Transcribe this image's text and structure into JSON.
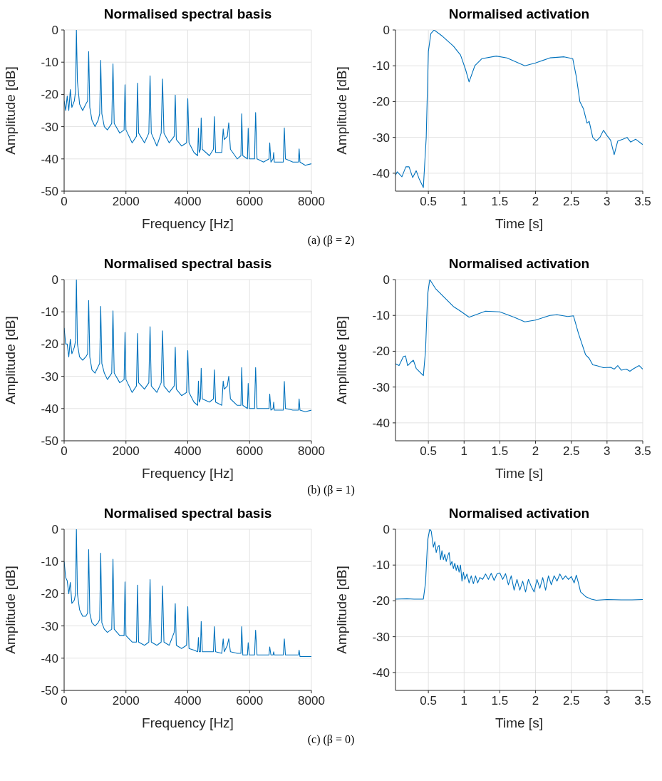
{
  "chart_data": [
    {
      "type": "line",
      "title": "Normalised spectral basis",
      "xlabel": "Frequency [Hz]",
      "ylabel": "Amplitude [dB]",
      "annotations": [
        "(a) (β = 2)"
      ],
      "xlim": [
        0,
        8000
      ],
      "xticks": [
        0,
        2000,
        4000,
        6000,
        8000
      ],
      "ylim": [
        -50,
        0
      ],
      "yticks": [
        -50,
        -40,
        -30,
        -20,
        -10,
        0
      ],
      "grid": true,
      "x": [
        0,
        50,
        100,
        150,
        200,
        250,
        330,
        370,
        397,
        430,
        500,
        600,
        700,
        760,
        794,
        830,
        900,
        1000,
        1100,
        1150,
        1183,
        1220,
        1300,
        1400,
        1540,
        1580,
        1620,
        1800,
        1940,
        1970,
        2000,
        2200,
        2340,
        2375,
        2410,
        2600,
        2740,
        2780,
        2820,
        3000,
        3140,
        3183,
        3230,
        3400,
        3560,
        3595,
        3630,
        3800,
        3960,
        4000,
        4040,
        4200,
        4320,
        4345,
        4370,
        4410,
        4434,
        4470,
        4700,
        4830,
        4861,
        4900,
        5100,
        5146,
        5180,
        5280,
        5326,
        5380,
        5600,
        5720,
        5745,
        5780,
        5930,
        5955,
        5990,
        6160,
        6195,
        6240,
        6450,
        6630,
        6652,
        6690,
        6760,
        6780,
        6800,
        7090,
        7124,
        7160,
        7400,
        7580,
        7603,
        7630,
        7800,
        8000
      ],
      "series": [
        {
          "color": "#0072bd",
          "values": [
            -22,
            -25,
            -20.5,
            -25,
            -18.5,
            -24,
            -22,
            -19,
            0,
            -16,
            -23,
            -25,
            -23,
            -22,
            -6.7,
            -24,
            -28,
            -30,
            -28,
            -26,
            -9.4,
            -26,
            -30,
            -31,
            -29,
            -10.5,
            -29,
            -32,
            -31,
            -17,
            -31,
            -35,
            -33,
            -16.5,
            -32,
            -35,
            -32,
            -14.2,
            -32,
            -36,
            -32,
            -15.2,
            -32,
            -35,
            -33,
            -20.2,
            -34,
            -36,
            -35,
            -21.3,
            -35,
            -38,
            -39,
            -30.5,
            -38,
            -37,
            -27.3,
            -37,
            -39,
            -37,
            -26.9,
            -38,
            -38,
            -30.7,
            -34,
            -33,
            -28.8,
            -37,
            -40,
            -39,
            -26,
            -39,
            -40,
            -30.5,
            -40,
            -40,
            -25.6,
            -40,
            -41,
            -40,
            -35,
            -41,
            -40,
            -38,
            -41,
            -41,
            -30.4,
            -40,
            -41,
            -41,
            -36.9,
            -41,
            -42,
            -41.5
          ]
        }
      ]
    },
    {
      "type": "line",
      "title": "Normalised activation",
      "xlabel": "Time [s]",
      "ylabel": "Amplitude [dB]",
      "xlim": [
        0.04,
        3.5
      ],
      "xticks": [
        0.5,
        1,
        1.5,
        2,
        2.5,
        3,
        3.5
      ],
      "ylim": [
        -45,
        0
      ],
      "yticks": [
        -40,
        -30,
        -20,
        -10,
        0
      ],
      "grid": true,
      "x": [
        0.04,
        0.065,
        0.13,
        0.185,
        0.23,
        0.28,
        0.33,
        0.37,
        0.43,
        0.47,
        0.5,
        0.535,
        0.58,
        0.7,
        0.85,
        0.95,
        1.02,
        1.07,
        1.15,
        1.25,
        1.45,
        1.6,
        1.85,
        2.0,
        2.2,
        2.4,
        2.52,
        2.57,
        2.62,
        2.67,
        2.72,
        2.75,
        2.8,
        2.85,
        2.9,
        2.95,
        3.0,
        3.05,
        3.1,
        3.15,
        3.22,
        3.28,
        3.33,
        3.4,
        3.5
      ],
      "series": [
        {
          "color": "#0072bd",
          "values": [
            -40.5,
            -39.6,
            -41,
            -38.2,
            -38.2,
            -41.2,
            -39.3,
            -41.5,
            -44,
            -30,
            -6,
            -1,
            0,
            -1.8,
            -4.5,
            -7,
            -11,
            -14.5,
            -10,
            -8,
            -7.3,
            -7.8,
            -10,
            -9.2,
            -7.8,
            -7.5,
            -8,
            -13,
            -20,
            -22,
            -26,
            -25.5,
            -30,
            -31,
            -30,
            -28,
            -29.5,
            -30.8,
            -34.8,
            -31,
            -30.5,
            -30,
            -31.3,
            -30.5,
            -32
          ]
        }
      ]
    },
    {
      "type": "line",
      "title": "Normalised spectral basis",
      "xlabel": "Frequency [Hz]",
      "ylabel": "Amplitude [dB]",
      "annotations": [
        "(b) (β = 1)"
      ],
      "xlim": [
        0,
        8000
      ],
      "xticks": [
        0,
        2000,
        4000,
        6000,
        8000
      ],
      "ylim": [
        -50,
        0
      ],
      "yticks": [
        -50,
        -40,
        -30,
        -20,
        -10,
        0
      ],
      "grid": true,
      "x": [
        0,
        50,
        100,
        150,
        200,
        250,
        330,
        370,
        397,
        430,
        500,
        600,
        700,
        760,
        794,
        830,
        900,
        1000,
        1100,
        1150,
        1183,
        1220,
        1300,
        1400,
        1540,
        1580,
        1620,
        1800,
        1940,
        1970,
        2000,
        2200,
        2340,
        2375,
        2410,
        2600,
        2740,
        2780,
        2820,
        3000,
        3140,
        3183,
        3230,
        3400,
        3560,
        3595,
        3630,
        3800,
        3960,
        4000,
        4040,
        4200,
        4320,
        4345,
        4370,
        4410,
        4434,
        4470,
        4700,
        4830,
        4861,
        4900,
        5100,
        5146,
        5180,
        5280,
        5326,
        5380,
        5600,
        5720,
        5745,
        5780,
        5930,
        5955,
        5990,
        6160,
        6195,
        6240,
        6450,
        6630,
        6652,
        6690,
        6760,
        6780,
        6800,
        7090,
        7124,
        7160,
        7400,
        7580,
        7603,
        7630,
        7800,
        8000
      ],
      "series": [
        {
          "color": "#0072bd",
          "values": [
            -15,
            -20,
            -20,
            -24,
            -18.5,
            -23,
            -21,
            -19,
            0,
            -20,
            -24,
            -25,
            -24,
            -23,
            -6.5,
            -24,
            -28,
            -29,
            -27,
            -26,
            -8.3,
            -26,
            -29,
            -31,
            -29,
            -9.7,
            -29,
            -32,
            -31,
            -16.4,
            -31,
            -35,
            -33,
            -16.7,
            -32,
            -34,
            -32,
            -14.6,
            -33,
            -35,
            -32,
            -15.9,
            -33,
            -35,
            -33,
            -21,
            -34,
            -36,
            -35,
            -22,
            -35,
            -38,
            -39,
            -31.5,
            -38,
            -37,
            -27.5,
            -37,
            -38,
            -37,
            -28,
            -38,
            -39,
            -31.5,
            -34,
            -33,
            -30,
            -37,
            -39,
            -39,
            -27.3,
            -39,
            -40,
            -32.2,
            -40,
            -40,
            -27.3,
            -40,
            -40,
            -40,
            -35.5,
            -40.5,
            -40,
            -38,
            -40.5,
            -40.5,
            -31.6,
            -40,
            -40.5,
            -40.5,
            -37,
            -40.5,
            -41,
            -40.5
          ]
        }
      ]
    },
    {
      "type": "line",
      "title": "Normalised activation",
      "xlabel": "Time [s]",
      "ylabel": "Amplitude [dB]",
      "xlim": [
        0.04,
        3.5
      ],
      "xticks": [
        0.5,
        1,
        1.5,
        2,
        2.5,
        3,
        3.5
      ],
      "ylim": [
        -45,
        0
      ],
      "yticks": [
        -40,
        -30,
        -20,
        -10,
        0
      ],
      "grid": true,
      "x": [
        0.04,
        0.09,
        0.15,
        0.18,
        0.21,
        0.25,
        0.29,
        0.33,
        0.43,
        0.46,
        0.49,
        0.52,
        0.6,
        0.75,
        0.85,
        0.95,
        1.07,
        1.3,
        1.5,
        1.7,
        1.85,
        2.0,
        2.2,
        2.3,
        2.45,
        2.53,
        2.6,
        2.7,
        2.75,
        2.8,
        2.85,
        2.95,
        3.05,
        3.1,
        3.15,
        3.2,
        3.27,
        3.32,
        3.37,
        3.45,
        3.5
      ],
      "series": [
        {
          "color": "#0072bd",
          "values": [
            -23.5,
            -24,
            -21.5,
            -21.3,
            -24,
            -23.2,
            -22.5,
            -24.8,
            -26.8,
            -20,
            -4,
            0,
            -2.5,
            -5.5,
            -7.5,
            -8.8,
            -10.5,
            -8.8,
            -9,
            -10.5,
            -11.8,
            -11.3,
            -10,
            -9.8,
            -10.3,
            -10.1,
            -15,
            -21,
            -22,
            -23.8,
            -24,
            -24.6,
            -24.5,
            -25,
            -24,
            -25.3,
            -25,
            -25.6,
            -24.9,
            -24,
            -25
          ]
        }
      ]
    },
    {
      "type": "line",
      "title": "Normalised spectral basis",
      "xlabel": "Frequency [Hz]",
      "ylabel": "Amplitude [dB]",
      "annotations": [
        "(c) (β = 0)"
      ],
      "xlim": [
        0,
        8000
      ],
      "xticks": [
        0,
        2000,
        4000,
        6000,
        8000
      ],
      "ylim": [
        -50,
        0
      ],
      "yticks": [
        -50,
        -40,
        -30,
        -20,
        -10,
        0
      ],
      "grid": true,
      "x": [
        0,
        50,
        100,
        150,
        200,
        250,
        330,
        370,
        397,
        430,
        500,
        600,
        700,
        760,
        794,
        830,
        900,
        1000,
        1100,
        1150,
        1183,
        1220,
        1300,
        1400,
        1540,
        1580,
        1620,
        1800,
        1940,
        1970,
        2000,
        2200,
        2340,
        2375,
        2410,
        2600,
        2740,
        2780,
        2820,
        3000,
        3140,
        3183,
        3230,
        3400,
        3560,
        3595,
        3630,
        3800,
        3960,
        4000,
        4040,
        4200,
        4320,
        4345,
        4370,
        4410,
        4434,
        4470,
        4700,
        4830,
        4861,
        4900,
        5100,
        5146,
        5180,
        5280,
        5326,
        5380,
        5600,
        5720,
        5745,
        5780,
        5930,
        5955,
        5990,
        6160,
        6195,
        6240,
        6450,
        6630,
        6652,
        6690,
        6760,
        6780,
        6800,
        7090,
        7124,
        7160,
        7400,
        7580,
        7603,
        7630,
        7800,
        8000
      ],
      "series": [
        {
          "color": "#0072bd",
          "values": [
            -10,
            -15,
            -16,
            -20,
            -16.5,
            -23,
            -22,
            -20,
            0,
            -20,
            -25,
            -27,
            -27,
            -26,
            -6.3,
            -26,
            -29,
            -30,
            -29,
            -28,
            -7.4,
            -29,
            -31,
            -32,
            -31,
            -9.3,
            -31,
            -33,
            -33,
            -16.3,
            -33,
            -35,
            -35,
            -17.3,
            -35,
            -36,
            -35,
            -15.6,
            -35,
            -36,
            -35,
            -17.6,
            -35,
            -36,
            -32,
            -23.1,
            -36,
            -37,
            -36,
            -24,
            -37,
            -37.5,
            -38,
            -33.6,
            -38,
            -38,
            -28.6,
            -38,
            -38,
            -38,
            -30.2,
            -38,
            -38.5,
            -34,
            -38,
            -36,
            -34,
            -38,
            -38.5,
            -38.5,
            -30.2,
            -39,
            -39,
            -35.2,
            -39,
            -39,
            -31.3,
            -39,
            -39,
            -39,
            -36.5,
            -39,
            -39,
            -38,
            -39,
            -39,
            -34,
            -39,
            -39,
            -39,
            -37.5,
            -39.5,
            -39.5,
            -39.5
          ]
        }
      ]
    },
    {
      "type": "line",
      "title": "Normalised activation",
      "xlabel": "Time [s]",
      "ylabel": "Amplitude [dB]",
      "xlim": [
        0.04,
        3.5
      ],
      "xticks": [
        0.5,
        1,
        1.5,
        2,
        2.5,
        3,
        3.5
      ],
      "ylim": [
        -45,
        0
      ],
      "yticks": [
        -40,
        -30,
        -20,
        -10,
        0
      ],
      "grid": true,
      "x": [
        0.04,
        0.2,
        0.3,
        0.43,
        0.46,
        0.49,
        0.52,
        0.54,
        0.57,
        0.59,
        0.61,
        0.63,
        0.65,
        0.67,
        0.69,
        0.71,
        0.73,
        0.75,
        0.77,
        0.79,
        0.81,
        0.83,
        0.85,
        0.87,
        0.89,
        0.91,
        0.93,
        0.95,
        0.97,
        0.99,
        1.01,
        1.04,
        1.07,
        1.1,
        1.13,
        1.16,
        1.19,
        1.22,
        1.26,
        1.3,
        1.34,
        1.38,
        1.42,
        1.46,
        1.5,
        1.54,
        1.58,
        1.62,
        1.66,
        1.7,
        1.74,
        1.78,
        1.82,
        1.86,
        1.9,
        1.94,
        1.98,
        2.02,
        2.06,
        2.1,
        2.14,
        2.18,
        2.22,
        2.26,
        2.3,
        2.34,
        2.38,
        2.42,
        2.46,
        2.5,
        2.54,
        2.57,
        2.6,
        2.63,
        2.7,
        2.78,
        2.85,
        3.0,
        3.2,
        3.35,
        3.5
      ],
      "series": [
        {
          "color": "#0072bd",
          "values": [
            -19.5,
            -19.4,
            -19.5,
            -19.5,
            -15,
            -3,
            0,
            -0.5,
            -5,
            -3.5,
            -6.5,
            -5,
            -4.5,
            -8.5,
            -6,
            -8.5,
            -7,
            -9,
            -7.5,
            -6.5,
            -10,
            -9,
            -11,
            -9.5,
            -11.5,
            -10,
            -12,
            -10,
            -14.5,
            -12,
            -14,
            -12.5,
            -15,
            -13,
            -15.2,
            -13,
            -15,
            -13.5,
            -14,
            -12.5,
            -14,
            -12.3,
            -14.3,
            -12.5,
            -12.2,
            -14,
            -12.4,
            -15.5,
            -13,
            -17,
            -14,
            -17,
            -14.5,
            -17.5,
            -14,
            -16,
            -17.5,
            -14,
            -16.5,
            -13.5,
            -17,
            -13,
            -15.5,
            -13,
            -14.5,
            -12.5,
            -14,
            -13,
            -14,
            -13.2,
            -15,
            -12.8,
            -15,
            -17.5,
            -18.8,
            -19.5,
            -19.8,
            -19.6,
            -19.7,
            -19.7,
            -19.6
          ]
        }
      ]
    }
  ]
}
